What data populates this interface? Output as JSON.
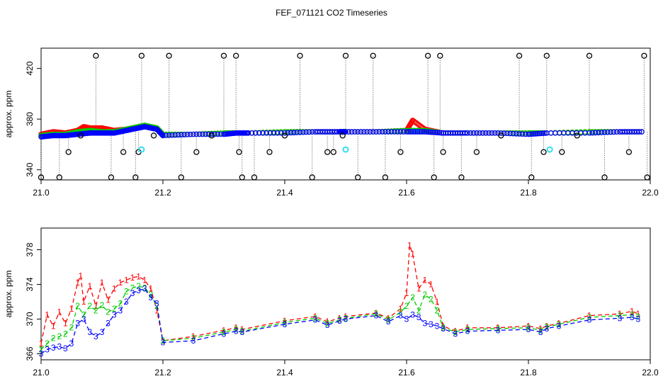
{
  "title": "FEF_071121  CO2 Timeseries",
  "colors": {
    "series1": "#ff0000",
    "series2": "#00cc00",
    "series3": "#0000ff",
    "outlier": "#000000",
    "flagged": "#33e0f0",
    "connector": "#888888",
    "frame": "#000000"
  },
  "chart_data": [
    {
      "type": "scatter",
      "title": "",
      "xlabel": "",
      "ylabel": "approx. ppm",
      "xlim": [
        21.0,
        22.0
      ],
      "ylim": [
        332,
        436
      ],
      "xticks": [
        "21.0",
        "21.2",
        "21.4",
        "21.6",
        "21.8",
        "22.0"
      ],
      "yticks": [
        "340",
        "380",
        "420"
      ],
      "grid": false,
      "legend": "none",
      "base_series": [
        {
          "name": "1",
          "color": "#ff0000",
          "x": [
            21.0,
            21.02,
            21.04,
            21.06,
            21.07,
            21.08,
            21.1,
            21.12,
            21.14,
            21.16,
            21.17,
            21.19,
            21.2,
            21.25,
            21.3,
            21.32,
            21.34,
            21.4,
            21.45,
            21.49,
            21.5,
            21.55,
            21.6,
            21.61,
            21.63,
            21.66,
            21.7,
            21.75,
            21.8,
            21.83,
            21.9,
            21.95,
            21.99
          ],
          "y": [
            368,
            370,
            369,
            371,
            374,
            373,
            373,
            371,
            372,
            374,
            375,
            373,
            368,
            368,
            369,
            369,
            369,
            370,
            370,
            370,
            370,
            370,
            371,
            379,
            372,
            369,
            369,
            369,
            369,
            369,
            370,
            370,
            370
          ]
        },
        {
          "name": "2",
          "color": "#00cc00",
          "x": [
            21.0,
            21.02,
            21.04,
            21.06,
            21.08,
            21.1,
            21.12,
            21.14,
            21.16,
            21.17,
            21.19,
            21.2,
            21.25,
            21.3,
            21.32,
            21.34,
            21.4,
            21.45,
            21.49,
            21.5,
            21.55,
            21.6,
            21.63,
            21.66,
            21.7,
            21.75,
            21.8,
            21.83,
            21.9,
            21.95,
            21.99
          ],
          "y": [
            367,
            368,
            368,
            370,
            371,
            370,
            370,
            372,
            374,
            375,
            373,
            368,
            368,
            369,
            369,
            369,
            370,
            370,
            370,
            370,
            370,
            371,
            371,
            369,
            369,
            369,
            369,
            369,
            370,
            370,
            370
          ]
        },
        {
          "name": "3",
          "color": "#0000ff",
          "x": [
            21.0,
            21.02,
            21.04,
            21.06,
            21.08,
            21.1,
            21.12,
            21.14,
            21.16,
            21.17,
            21.19,
            21.2,
            21.25,
            21.3,
            21.32,
            21.34,
            21.4,
            21.45,
            21.49,
            21.5,
            21.55,
            21.6,
            21.63,
            21.66,
            21.7,
            21.75,
            21.8,
            21.83,
            21.9,
            21.95,
            21.99
          ],
          "y": [
            366,
            367,
            367,
            368,
            369,
            369,
            369,
            371,
            373,
            374,
            372,
            367,
            368,
            368,
            369,
            369,
            369,
            370,
            370,
            370,
            370,
            370,
            370,
            369,
            369,
            369,
            368,
            369,
            369,
            370,
            370
          ]
        }
      ],
      "outliers": {
        "x": [
          21.0,
          21.03,
          21.045,
          21.065,
          21.09,
          21.115,
          21.135,
          21.155,
          21.16,
          21.165,
          21.185,
          21.21,
          21.23,
          21.255,
          21.28,
          21.3,
          21.32,
          21.325,
          21.33,
          21.35,
          21.375,
          21.4,
          21.425,
          21.445,
          21.47,
          21.48,
          21.495,
          21.5,
          21.52,
          21.545,
          21.565,
          21.59,
          21.635,
          21.645,
          21.655,
          21.66,
          21.69,
          21.715,
          21.755,
          21.785,
          21.805,
          21.825,
          21.83,
          21.855,
          21.88,
          21.9,
          21.925,
          21.965,
          21.99,
          21.995
        ],
        "y": [
          334,
          334,
          354,
          367,
          430,
          334,
          354,
          334,
          354,
          430,
          367,
          430,
          334,
          354,
          367,
          430,
          430,
          354,
          334,
          334,
          354,
          367,
          430,
          334,
          354,
          354,
          367,
          430,
          334,
          430,
          334,
          354,
          430,
          334,
          430,
          354,
          334,
          354,
          367,
          430,
          334,
          354,
          430,
          354,
          367,
          430,
          334,
          354,
          430,
          334
        ]
      },
      "flagged": {
        "x": [
          21.165,
          21.5,
          21.835
        ],
        "y": [
          356,
          356,
          356
        ]
      }
    },
    {
      "type": "line",
      "title": "",
      "xlabel": "",
      "ylabel": "approx. ppm",
      "xlim": [
        21.0,
        22.0
      ],
      "ylim": [
        365.3,
        380.5
      ],
      "xticks": [
        "21.0",
        "21.2",
        "21.4",
        "21.6",
        "21.8",
        "22.0"
      ],
      "yticks": [
        "366",
        "370",
        "374",
        "378"
      ],
      "grid": false,
      "legend": "none",
      "series": [
        {
          "name": "1",
          "color": "#ff0000",
          "x": [
            21.0,
            21.01,
            21.02,
            21.03,
            21.04,
            21.05,
            21.06,
            21.065,
            21.07,
            21.08,
            21.09,
            21.1,
            21.11,
            21.12,
            21.13,
            21.14,
            21.15,
            21.16,
            21.17,
            21.18,
            21.19,
            21.2,
            21.25,
            21.3,
            21.32,
            21.33,
            21.4,
            21.45,
            21.47,
            21.49,
            21.5,
            21.55,
            21.57,
            21.59,
            21.6,
            21.605,
            21.61,
            21.62,
            21.63,
            21.64,
            21.65,
            21.66,
            21.68,
            21.7,
            21.75,
            21.8,
            21.82,
            21.83,
            21.85,
            21.9,
            21.95,
            21.97,
            21.98
          ],
          "y": [
            367.2,
            370.5,
            369.2,
            370.8,
            369.5,
            371.2,
            374.2,
            375.0,
            372.0,
            373.8,
            371.5,
            374.2,
            372.2,
            373.5,
            374.2,
            374.5,
            374.8,
            374.9,
            374.5,
            373.5,
            371.0,
            367.5,
            368.0,
            368.7,
            369.0,
            368.8,
            369.8,
            370.3,
            369.7,
            370.1,
            370.3,
            370.7,
            370.1,
            371.2,
            373.0,
            378.5,
            377.5,
            373.5,
            374.5,
            374.0,
            372.0,
            369.2,
            368.6,
            369.0,
            369.0,
            369.2,
            368.9,
            369.2,
            369.5,
            370.4,
            370.6,
            370.9,
            370.6
          ]
        },
        {
          "name": "2",
          "color": "#00cc00",
          "x": [
            21.0,
            21.01,
            21.02,
            21.03,
            21.04,
            21.05,
            21.06,
            21.07,
            21.08,
            21.09,
            21.1,
            21.11,
            21.12,
            21.13,
            21.14,
            21.15,
            21.16,
            21.17,
            21.18,
            21.19,
            21.2,
            21.25,
            21.3,
            21.32,
            21.33,
            21.4,
            21.45,
            21.47,
            21.49,
            21.5,
            21.55,
            21.57,
            21.59,
            21.6,
            21.61,
            21.62,
            21.63,
            21.64,
            21.65,
            21.66,
            21.68,
            21.7,
            21.75,
            21.8,
            21.82,
            21.83,
            21.85,
            21.9,
            21.95,
            21.97,
            21.98
          ],
          "y": [
            366.5,
            367.2,
            367.8,
            368.0,
            368.3,
            369.0,
            371.5,
            370.5,
            371.5,
            371.0,
            371.6,
            370.8,
            371.2,
            371.8,
            373.2,
            373.6,
            373.8,
            373.6,
            372.8,
            371.5,
            367.5,
            367.8,
            368.5,
            368.8,
            368.6,
            369.6,
            370.1,
            369.5,
            369.9,
            370.1,
            370.6,
            369.9,
            370.8,
            371.5,
            372.5,
            371.0,
            372.8,
            372.3,
            371.0,
            369.0,
            368.5,
            368.8,
            368.9,
            369.0,
            368.7,
            369.1,
            369.4,
            370.2,
            370.4,
            370.5,
            370.3
          ]
        },
        {
          "name": "3",
          "color": "#0000ff",
          "x": [
            21.0,
            21.01,
            21.02,
            21.03,
            21.04,
            21.05,
            21.06,
            21.07,
            21.08,
            21.09,
            21.1,
            21.11,
            21.12,
            21.13,
            21.14,
            21.15,
            21.16,
            21.17,
            21.18,
            21.19,
            21.2,
            21.25,
            21.3,
            21.32,
            21.33,
            21.4,
            21.45,
            21.47,
            21.49,
            21.5,
            21.55,
            21.57,
            21.59,
            21.6,
            21.61,
            21.62,
            21.63,
            21.64,
            21.65,
            21.66,
            21.68,
            21.7,
            21.75,
            21.8,
            21.82,
            21.83,
            21.85,
            21.9,
            21.95,
            21.97,
            21.98
          ],
          "y": [
            366.0,
            366.5,
            366.7,
            366.8,
            366.6,
            367.2,
            369.5,
            370.0,
            368.5,
            368.0,
            368.5,
            369.5,
            370.5,
            371.0,
            372.0,
            373.0,
            373.3,
            373.5,
            372.5,
            371.8,
            367.3,
            367.5,
            368.3,
            368.6,
            368.5,
            369.4,
            369.9,
            369.3,
            369.8,
            370.0,
            370.4,
            369.7,
            370.4,
            370.0,
            370.5,
            370.2,
            369.5,
            369.4,
            369.2,
            368.9,
            368.3,
            368.6,
            368.7,
            368.8,
            368.5,
            368.9,
            369.2,
            369.9,
            370.1,
            370.2,
            370.0
          ]
        }
      ]
    }
  ]
}
